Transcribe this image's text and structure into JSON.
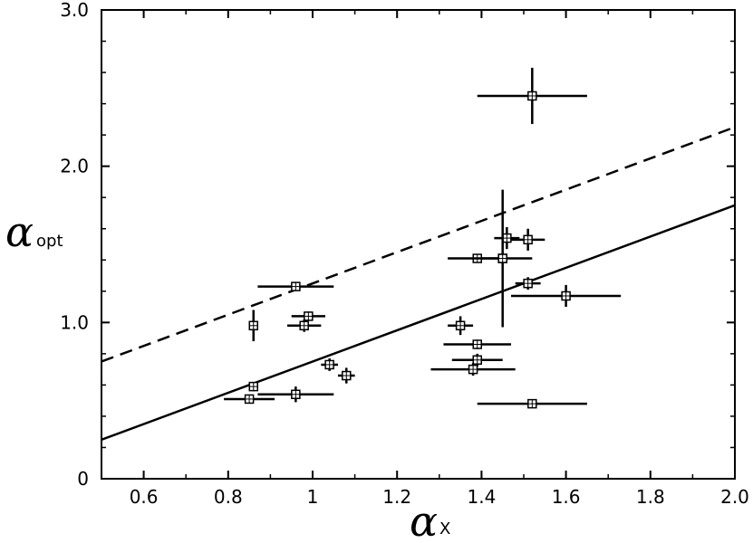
{
  "chart_data": {
    "type": "scatter",
    "xlabel": {
      "symbol": "α",
      "subscript": "X"
    },
    "ylabel": {
      "symbol": "α",
      "subscript": "opt"
    },
    "xlim": [
      0.5,
      2.0
    ],
    "ylim": [
      0,
      3.0
    ],
    "x_ticks": [
      {
        "value": 0.6,
        "label": "0.6"
      },
      {
        "value": 0.8,
        "label": "0.8"
      },
      {
        "value": 1.0,
        "label": "1"
      },
      {
        "value": 1.2,
        "label": "1.2"
      },
      {
        "value": 1.4,
        "label": "1.4"
      },
      {
        "value": 1.6,
        "label": "1.6"
      },
      {
        "value": 1.8,
        "label": "1.8"
      },
      {
        "value": 2.0,
        "label": "2.0"
      }
    ],
    "y_ticks": [
      {
        "value": 0,
        "label": "0"
      },
      {
        "value": 1.0,
        "label": "1.0"
      },
      {
        "value": 2.0,
        "label": "2.0"
      },
      {
        "value": 3.0,
        "label": "3.0"
      }
    ],
    "grid": false,
    "points": [
      {
        "x": 1.52,
        "y": 2.45,
        "xerr": 0.13,
        "yerr": 0.18
      },
      {
        "x": 1.46,
        "y": 1.54,
        "xerr": 0.03,
        "yerr": 0.07
      },
      {
        "x": 1.51,
        "y": 1.53,
        "xerr": 0.04,
        "yerr": 0.07
      },
      {
        "x": 1.39,
        "y": 1.41,
        "xerr": 0.07,
        "yerr": 0.02
      },
      {
        "x": 1.45,
        "y": 1.41,
        "xerr": 0.07,
        "yerr": 0.02
      },
      {
        "x": 1.45,
        "y": 1.41,
        "xerr": 0.0,
        "yerr": 0.44
      },
      {
        "x": 1.51,
        "y": 1.25,
        "xerr": 0.03,
        "yerr": 0.04
      },
      {
        "x": 1.6,
        "y": 1.17,
        "xerr": 0.13,
        "yerr": 0.07
      },
      {
        "x": 0.96,
        "y": 1.23,
        "xerr": 0.09,
        "yerr": 0.02
      },
      {
        "x": 0.86,
        "y": 0.98,
        "xerr": 0.0,
        "yerr": 0.1
      },
      {
        "x": 0.99,
        "y": 1.04,
        "xerr": 0.04,
        "yerr": 0.03
      },
      {
        "x": 0.98,
        "y": 0.98,
        "xerr": 0.04,
        "yerr": 0.04
      },
      {
        "x": 1.35,
        "y": 0.98,
        "xerr": 0.03,
        "yerr": 0.06
      },
      {
        "x": 1.39,
        "y": 0.86,
        "xerr": 0.08,
        "yerr": 0.03
      },
      {
        "x": 1.39,
        "y": 0.76,
        "xerr": 0.06,
        "yerr": 0.04
      },
      {
        "x": 1.38,
        "y": 0.7,
        "xerr": 0.1,
        "yerr": 0.04
      },
      {
        "x": 1.04,
        "y": 0.73,
        "xerr": 0.02,
        "yerr": 0.04
      },
      {
        "x": 1.08,
        "y": 0.66,
        "xerr": 0.02,
        "yerr": 0.05
      },
      {
        "x": 0.86,
        "y": 0.59,
        "xerr": 0.01,
        "yerr": 0.03
      },
      {
        "x": 0.96,
        "y": 0.54,
        "xerr": 0.09,
        "yerr": 0.05
      },
      {
        "x": 0.85,
        "y": 0.51,
        "xerr": 0.06,
        "yerr": 0.02
      },
      {
        "x": 1.52,
        "y": 0.48,
        "xerr": 0.13,
        "yerr": 0.01
      }
    ],
    "lines": [
      {
        "style": "solid",
        "x": [
          0.5,
          2.0
        ],
        "y": [
          0.25,
          1.75
        ]
      },
      {
        "style": "dashed",
        "x": [
          0.5,
          2.0
        ],
        "y": [
          0.75,
          2.25
        ]
      }
    ]
  }
}
